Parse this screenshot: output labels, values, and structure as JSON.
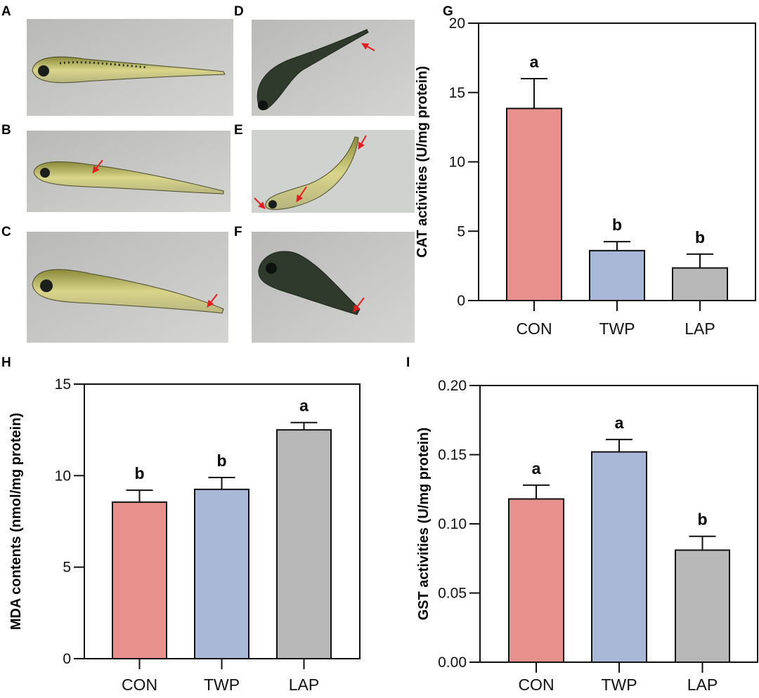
{
  "panels": {
    "photos": [
      {
        "label": "A"
      },
      {
        "label": "B"
      },
      {
        "label": "C"
      },
      {
        "label": "D"
      },
      {
        "label": "E"
      },
      {
        "label": "F"
      }
    ]
  },
  "colors": {
    "CON": "#e8908c",
    "TWP": "#a8b8d6",
    "LAP": "#b8b8b8",
    "arrow": "#e02020"
  },
  "chart_data": [
    {
      "panel": "G",
      "type": "bar",
      "categories": [
        "CON",
        "TWP",
        "LAP"
      ],
      "values": [
        13.85,
        3.6,
        2.35
      ],
      "errors": [
        2.15,
        0.65,
        1.0
      ],
      "significance": [
        "a",
        "b",
        "b"
      ],
      "ylabel": "CAT activities (U/mg protein)",
      "xlabel": "",
      "ylim": [
        0,
        20
      ],
      "yticks": [
        "0",
        "5",
        "10",
        "15",
        "20"
      ],
      "tickvals": [
        0,
        5,
        10,
        15,
        20
      ]
    },
    {
      "panel": "H",
      "type": "bar",
      "categories": [
        "CON",
        "TWP",
        "LAP"
      ],
      "values": [
        8.55,
        9.25,
        12.5
      ],
      "errors": [
        0.65,
        0.65,
        0.4
      ],
      "significance": [
        "b",
        "b",
        "a"
      ],
      "ylabel": "MDA contents (nmol/mg protein)",
      "xlabel": "",
      "ylim": [
        0,
        15
      ],
      "yticks": [
        "0",
        "5",
        "10",
        "15"
      ],
      "tickvals": [
        0,
        5,
        10,
        15
      ]
    },
    {
      "panel": "I",
      "type": "bar",
      "categories": [
        "CON",
        "TWP",
        "LAP"
      ],
      "values": [
        0.118,
        0.152,
        0.081
      ],
      "errors": [
        0.01,
        0.009,
        0.01
      ],
      "significance": [
        "a",
        "a",
        "b"
      ],
      "ylabel": "GST activities (U/mg protein)",
      "xlabel": "",
      "ylim": [
        0,
        0.2
      ],
      "yticks": [
        "0.00",
        "0.05",
        "0.10",
        "0.15",
        "0.20"
      ],
      "tickvals": [
        0,
        0.05,
        0.1,
        0.15,
        0.2
      ]
    }
  ]
}
